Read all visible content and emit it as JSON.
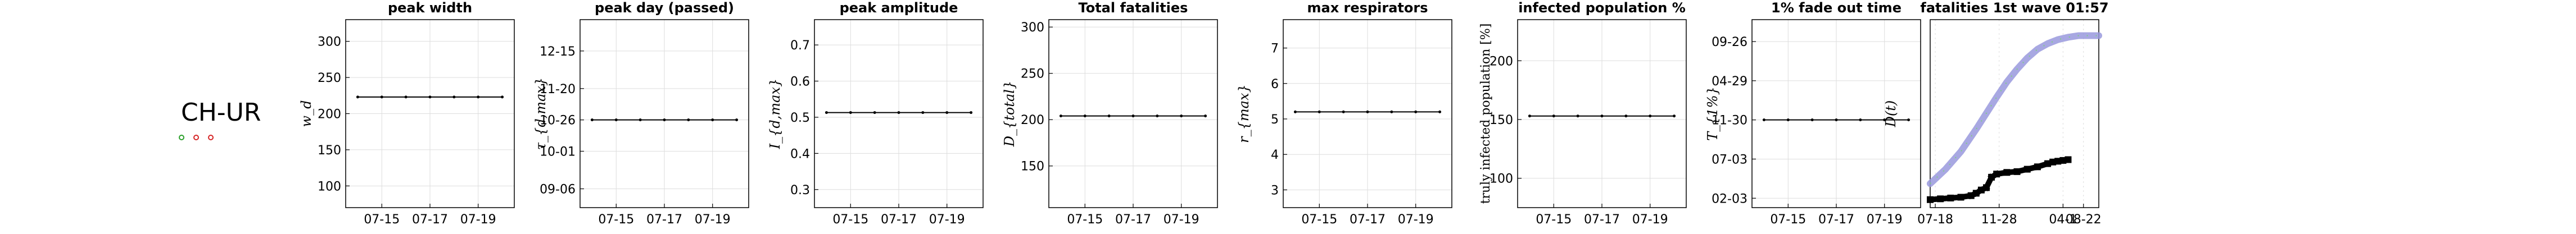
{
  "region_label": "CH-UR",
  "marker_colors": [
    "#2ca02c",
    "#d62728",
    "#d62728"
  ],
  "colors": {
    "line": "#000000",
    "grid": "#dddddd",
    "fit": "#9999dd",
    "fit_dots": "#7fcf7f"
  },
  "chart_data": [
    {
      "type": "line",
      "title": "peak width",
      "ylabel": "w_d",
      "ylim": [
        70,
        330
      ],
      "yticks": [
        100,
        150,
        200,
        250,
        300
      ],
      "x": [
        "07-14",
        "07-15",
        "07-16",
        "07-17",
        "07-18",
        "07-19",
        "07-20"
      ],
      "xticks": [
        "07-15",
        "07-17",
        "07-19"
      ],
      "grid": true,
      "series": [
        {
          "values": [
            223,
            223,
            223,
            223,
            223,
            223,
            223
          ]
        }
      ]
    },
    {
      "type": "line",
      "title": "peak day (passed)",
      "ylabel": "τ_{d,max}",
      "ylim": [
        -70,
        80
      ],
      "yticks": [
        -55,
        -25,
        0,
        25,
        55
      ],
      "yticklabels": [
        "09-06",
        "10-01",
        "10-26",
        "11-20",
        "12-15"
      ],
      "x": [
        "07-14",
        "07-15",
        "07-16",
        "07-17",
        "07-18",
        "07-19",
        "07-20"
      ],
      "xticks": [
        "07-15",
        "07-17",
        "07-19"
      ],
      "grid": true,
      "series": [
        {
          "values": [
            0,
            0,
            0,
            0,
            0,
            0,
            0
          ]
        }
      ]
    },
    {
      "type": "line",
      "title": "peak amplitude",
      "ylabel": "I_{d,max}",
      "ylim": [
        0.25,
        0.77
      ],
      "yticks": [
        0.3,
        0.4,
        0.5,
        0.6,
        0.7
      ],
      "x": [
        "07-14",
        "07-15",
        "07-16",
        "07-17",
        "07-18",
        "07-19",
        "07-20"
      ],
      "xticks": [
        "07-15",
        "07-17",
        "07-19"
      ],
      "grid": true,
      "series": [
        {
          "values": [
            0.513,
            0.513,
            0.513,
            0.513,
            0.513,
            0.513,
            0.513
          ]
        }
      ]
    },
    {
      "type": "line",
      "title": "Total fatalities",
      "ylabel": "D_{total}",
      "ylim": [
        105,
        308
      ],
      "yticks": [
        150,
        200,
        250,
        300
      ],
      "x": [
        "07-14",
        "07-15",
        "07-16",
        "07-17",
        "07-18",
        "07-19",
        "07-20"
      ],
      "xticks": [
        "07-15",
        "07-17",
        "07-19"
      ],
      "grid": true,
      "series": [
        {
          "values": [
            204,
            204,
            204,
            204,
            204,
            204,
            204
          ]
        }
      ]
    },
    {
      "type": "line",
      "title": "max respirators",
      "ylabel": "r_{max}",
      "ylim": [
        2.5,
        7.8
      ],
      "yticks": [
        3,
        4,
        5,
        6,
        7
      ],
      "x": [
        "07-14",
        "07-15",
        "07-16",
        "07-17",
        "07-18",
        "07-19",
        "07-20"
      ],
      "xticks": [
        "07-15",
        "07-17",
        "07-19"
      ],
      "grid": true,
      "series": [
        {
          "values": [
            5.2,
            5.2,
            5.2,
            5.2,
            5.2,
            5.2,
            5.2
          ]
        }
      ]
    },
    {
      "type": "line",
      "title": "infected population %",
      "ylabel": "truly infected population [%]",
      "ylim": [
        75,
        235
      ],
      "yticks": [
        100,
        150,
        200
      ],
      "x": [
        "07-14",
        "07-15",
        "07-16",
        "07-17",
        "07-18",
        "07-19",
        "07-20"
      ],
      "xticks": [
        "07-15",
        "07-17",
        "07-19"
      ],
      "grid": true,
      "series": [
        {
          "values": [
            153,
            153,
            153,
            153,
            153,
            153,
            153
          ]
        }
      ]
    },
    {
      "type": "line",
      "title": "1% fade out time",
      "ylabel": "T_{1%}",
      "ylim": [
        -280,
        320
      ],
      "yticks": [
        -250,
        -125,
        0,
        125,
        250
      ],
      "yticklabels": [
        "02-03",
        "07-03",
        "11-30",
        "04-29",
        "09-26"
      ],
      "x": [
        "07-14",
        "07-15",
        "07-16",
        "07-17",
        "07-18",
        "07-19",
        "07-20"
      ],
      "xticks": [
        "07-15",
        "07-17",
        "07-19"
      ],
      "grid": true,
      "series": [
        {
          "values": [
            0,
            0,
            0,
            0,
            0,
            0,
            0
          ]
        }
      ]
    },
    {
      "type": "line",
      "title": "fatalities 1st wave 01:57",
      "ylabel": "D(t)",
      "xlim": [
        0,
        330
      ],
      "ylim": [
        -10,
        225
      ],
      "xticks": [
        10,
        135,
        260,
        300
      ],
      "xticklabels": [
        "07-18",
        "11-28",
        "04-1",
        "08-22"
      ],
      "grid": true,
      "series": [
        {
          "style": "band",
          "x": [
            0,
            30,
            60,
            90,
            110,
            130,
            150,
            170,
            190,
            210,
            230,
            250,
            270,
            290,
            310,
            330
          ],
          "values": [
            20,
            38,
            60,
            88,
            108,
            128,
            147,
            163,
            177,
            188,
            195,
            200,
            203,
            205,
            205,
            205
          ]
        },
        {
          "style": "markers",
          "x": [
            0,
            20,
            40,
            60,
            80,
            90,
            100,
            110,
            120,
            130,
            150,
            170,
            190,
            210,
            230,
            240,
            250,
            260,
            270
          ],
          "values": [
            0,
            1,
            2,
            3,
            5,
            8,
            12,
            15,
            28,
            32,
            34,
            35,
            38,
            41,
            45,
            47,
            48,
            49,
            50
          ]
        }
      ]
    }
  ]
}
